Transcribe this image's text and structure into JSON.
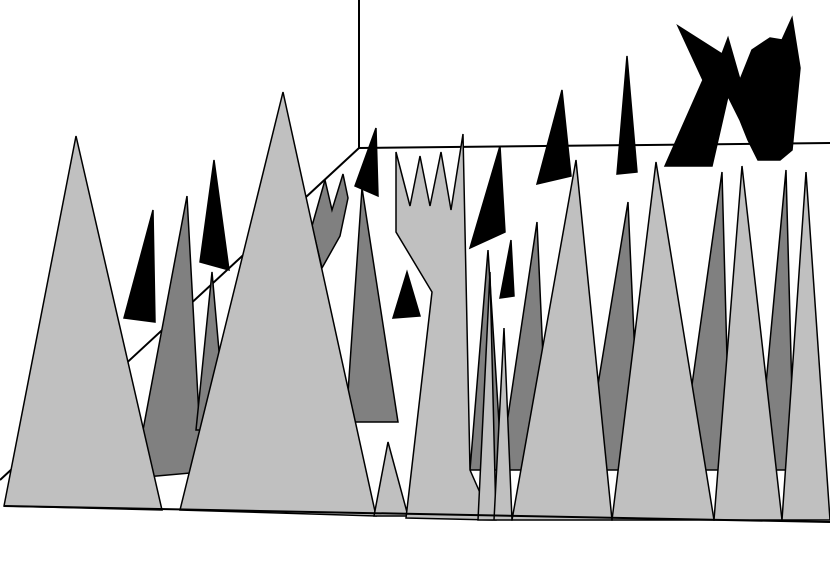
{
  "chart_data": {
    "type": "area",
    "projection": "3d",
    "grid": false,
    "legend": "none",
    "series_colors": [
      "#000000",
      "#808080",
      "#c0c0c0"
    ],
    "series": [
      {
        "depth": 0,
        "color": "#000000"
      },
      {
        "depth": 1,
        "color": "#808080"
      },
      {
        "depth": 2,
        "color": "#c0c0c0"
      }
    ]
  }
}
